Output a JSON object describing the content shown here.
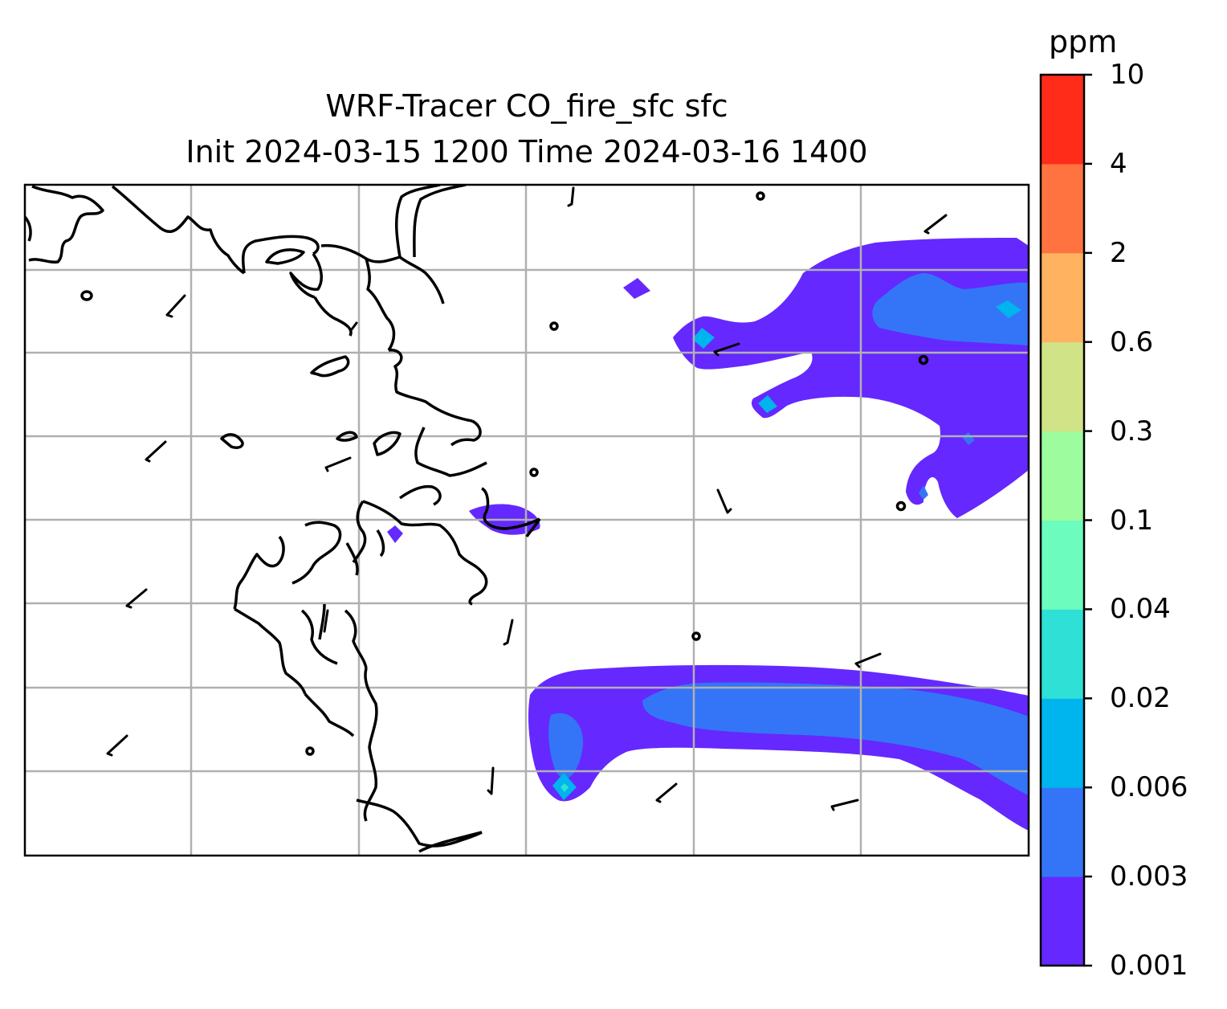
{
  "title": {
    "line1": "WRF-Tracer CO_fire_sfc sfc",
    "line2": "Init 2024-03-15 1200 Time 2024-03-16 1400"
  },
  "colorbar": {
    "unit": "ppm",
    "ticks": [
      "0.001",
      "0.003",
      "0.006",
      "0.02",
      "0.04",
      "0.1",
      "0.3",
      "0.6",
      "2",
      "4",
      "10"
    ],
    "colors": [
      "#6528fe",
      "#3475f7",
      "#00b4ee",
      "#2ee0d6",
      "#6bfcbe",
      "#9cfc9e",
      "#d0e487",
      "#ffb360",
      "#ff7340",
      "#ff2c1a"
    ]
  },
  "map": {
    "gridlines": true,
    "coastline_color": "#000000",
    "grid_color": "#b0b0b0"
  }
}
